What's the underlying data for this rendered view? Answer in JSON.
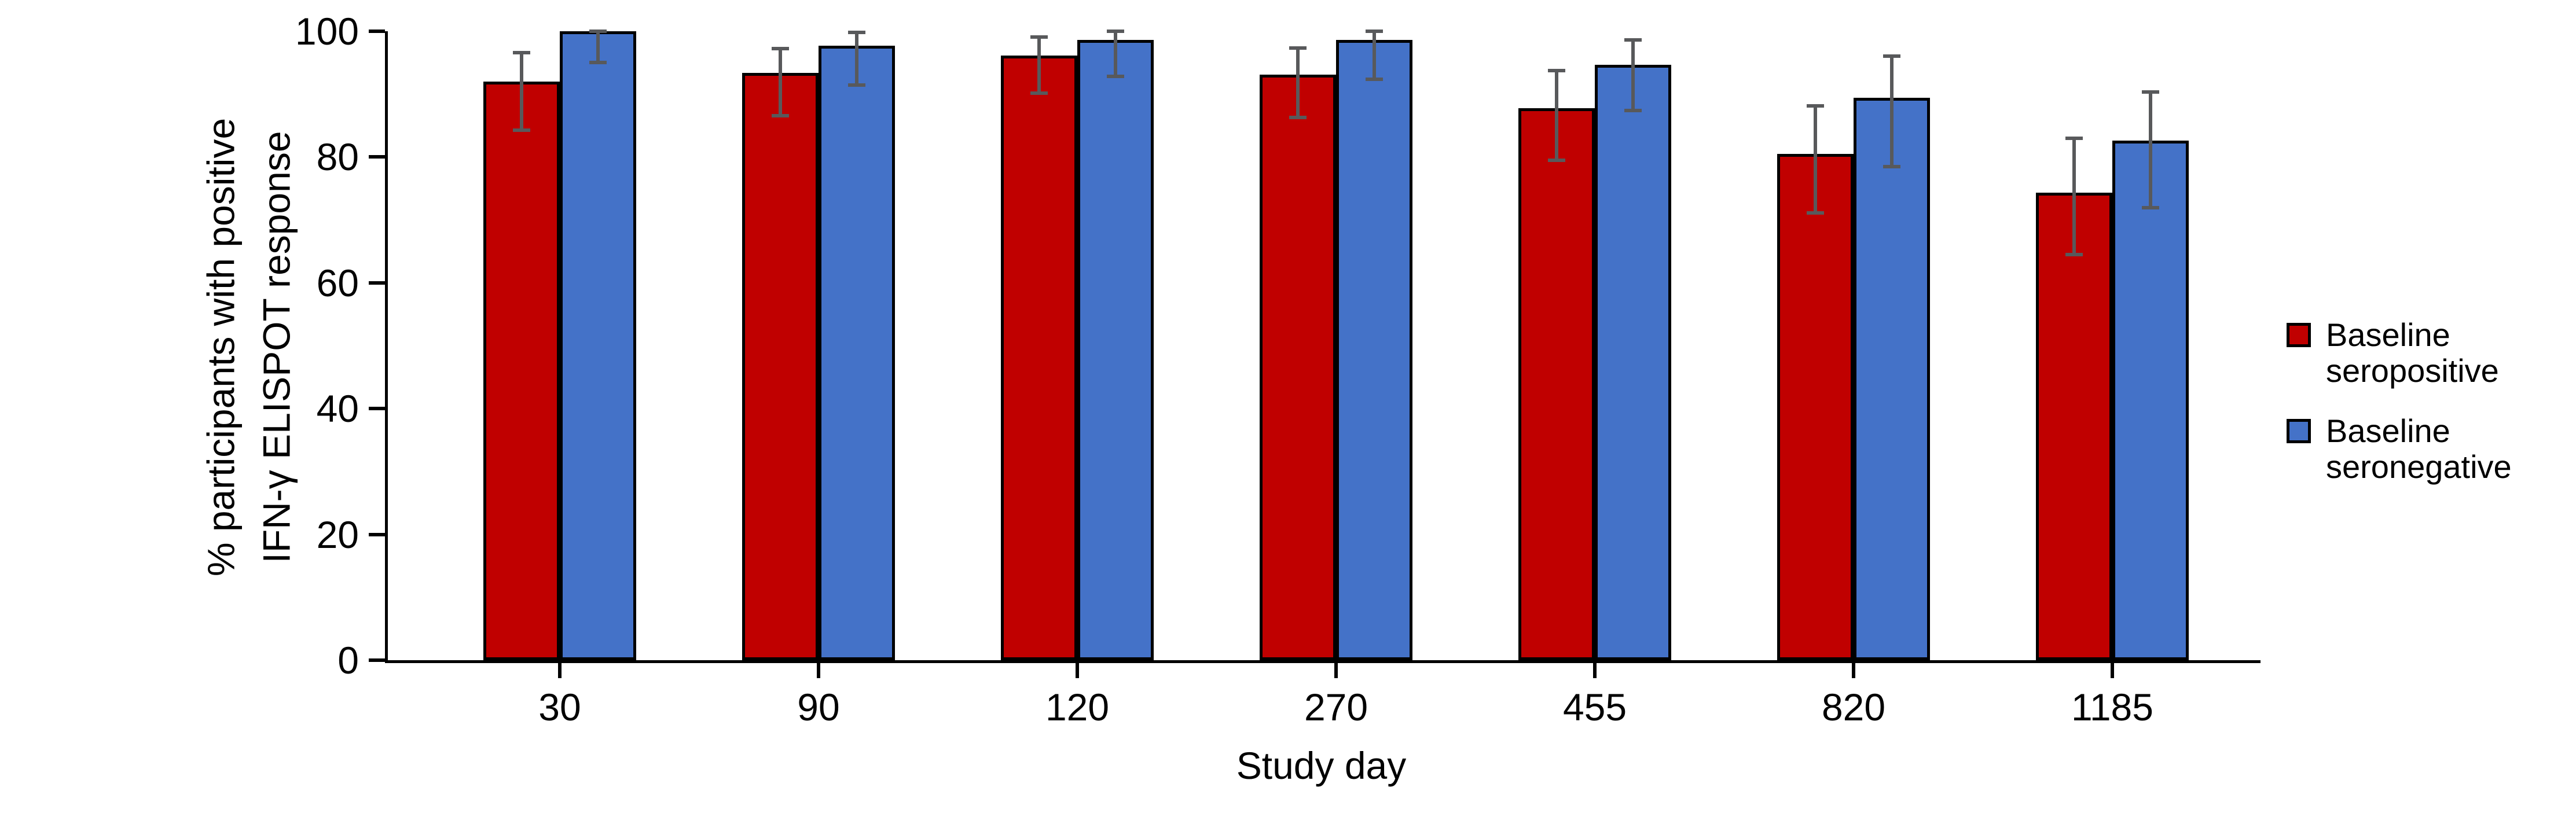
{
  "chart_data": {
    "type": "bar",
    "title": "",
    "xlabel": "Study day",
    "ylabel_lines": [
      "% participants with positive",
      "IFN-γ ELISPOT response"
    ],
    "categories": [
      "30",
      "90",
      "120",
      "270",
      "455",
      "820",
      "1185"
    ],
    "series": [
      {
        "name": "Baseline seropositive",
        "label_lines": [
          "Baseline",
          "seropositive"
        ],
        "color": "#c00000",
        "values": [
          92.0,
          93.4,
          96.1,
          93.1,
          87.8,
          80.5,
          74.3
        ],
        "err_low": [
          84.3,
          86.6,
          90.2,
          86.3,
          79.5,
          71.1,
          64.5
        ],
        "err_high": [
          96.6,
          97.2,
          99.1,
          97.3,
          93.7,
          88.1,
          83.0
        ]
      },
      {
        "name": "Baseline seronegative",
        "label_lines": [
          "Baseline",
          "seronegative"
        ],
        "color": "#4472c8",
        "values": [
          100.0,
          97.7,
          98.6,
          98.6,
          94.7,
          89.4,
          82.6
        ],
        "err_low": [
          95.0,
          91.4,
          92.8,
          92.4,
          87.4,
          78.5,
          71.9
        ],
        "err_high": [
          100.0,
          99.8,
          100.0,
          100.0,
          98.6,
          96.0,
          90.3
        ]
      }
    ],
    "yticks": [
      0,
      20,
      40,
      60,
      80,
      100
    ],
    "ylim": [
      0,
      100
    ],
    "grid": false,
    "legend_position": "right",
    "background": "#ffffff",
    "bar_edge_color": "#000000",
    "error_bar_color": "#58595b"
  }
}
